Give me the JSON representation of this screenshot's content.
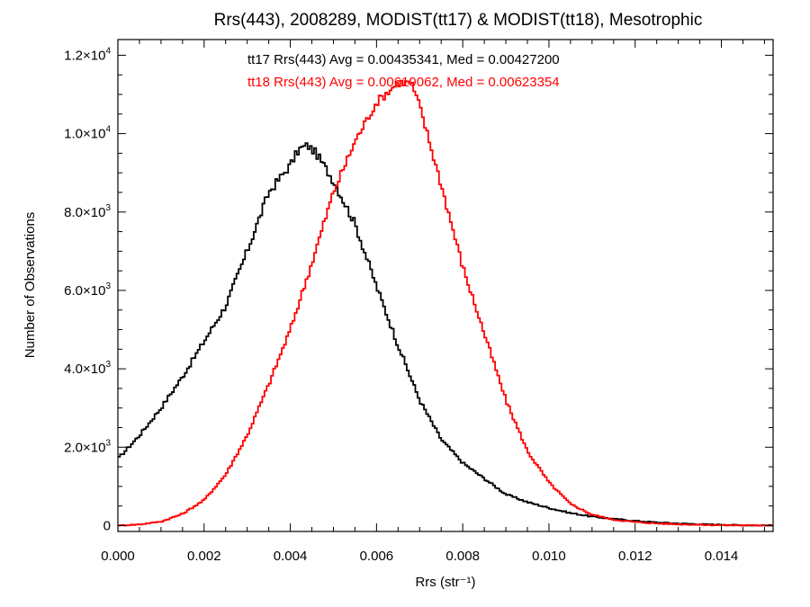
{
  "chart_data": {
    "type": "line",
    "style": "step",
    "title": "Rrs(443), 2008289, MODIST(tt17) & MODIST(tt18), Mesotrophic",
    "xlabel": "Rrs (str⁻¹)",
    "ylabel": "Number of Observations",
    "xlim": [
      0.0,
      0.0152
    ],
    "ylim": [
      -150,
      12400
    ],
    "grid": false,
    "x_ticks": [
      {
        "value": 0.0,
        "label": "0.000"
      },
      {
        "value": 0.002,
        "label": "0.002"
      },
      {
        "value": 0.004,
        "label": "0.004"
      },
      {
        "value": 0.006,
        "label": "0.006"
      },
      {
        "value": 0.008,
        "label": "0.008"
      },
      {
        "value": 0.01,
        "label": "0.010"
      },
      {
        "value": 0.012,
        "label": "0.012"
      },
      {
        "value": 0.014,
        "label": "0.014"
      }
    ],
    "y_ticks": [
      {
        "value": 0,
        "mantissa": "0",
        "exponent": ""
      },
      {
        "value": 2000,
        "mantissa": "2.0×10",
        "exponent": "3"
      },
      {
        "value": 4000,
        "mantissa": "4.0×10",
        "exponent": "3"
      },
      {
        "value": 6000,
        "mantissa": "6.0×10",
        "exponent": "3"
      },
      {
        "value": 8000,
        "mantissa": "8.0×10",
        "exponent": "3"
      },
      {
        "value": 10000,
        "mantissa": "1.0×10",
        "exponent": "4"
      },
      {
        "value": 12000,
        "mantissa": "1.2×10",
        "exponent": "4"
      }
    ],
    "series": [
      {
        "name": "tt17",
        "color": "#000000",
        "annotation": "tt17 Rrs(443) Avg = 0.00435341, Med = 0.00427200",
        "x": [
          0.0,
          0.0005,
          0.001,
          0.0015,
          0.002,
          0.0025,
          0.003,
          0.0035,
          0.004,
          0.0042,
          0.0044,
          0.0046,
          0.005,
          0.0055,
          0.006,
          0.0065,
          0.007,
          0.0075,
          0.008,
          0.0085,
          0.009,
          0.0095,
          0.01,
          0.0105,
          0.011,
          0.0115,
          0.012,
          0.0125,
          0.013,
          0.0135,
          0.014,
          0.0145,
          0.0152
        ],
        "y": [
          1700,
          2300,
          3000,
          3800,
          4700,
          5600,
          7000,
          8500,
          9200,
          9600,
          9700,
          9500,
          8800,
          7700,
          6100,
          4600,
          3200,
          2200,
          1600,
          1200,
          800,
          600,
          450,
          320,
          230,
          170,
          120,
          80,
          55,
          35,
          20,
          10,
          5
        ]
      },
      {
        "name": "tt18",
        "color": "#ff0000",
        "annotation": "tt18 Rrs(443) Avg = 0.00619062, Med = 0.00623354",
        "x": [
          0.0,
          0.0005,
          0.001,
          0.0015,
          0.002,
          0.0025,
          0.003,
          0.0035,
          0.004,
          0.0045,
          0.005,
          0.0055,
          0.006,
          0.0065,
          0.0068,
          0.007,
          0.0075,
          0.008,
          0.0085,
          0.009,
          0.0095,
          0.01,
          0.0105,
          0.011,
          0.0115,
          0.012,
          0.0125,
          0.013,
          0.0135,
          0.014,
          0.0145,
          0.0152
        ],
        "y": [
          0,
          30,
          100,
          300,
          650,
          1300,
          2300,
          3600,
          5000,
          6700,
          8500,
          9800,
          10800,
          11300,
          11300,
          10700,
          8700,
          6600,
          4900,
          3200,
          1900,
          1100,
          550,
          280,
          150,
          90,
          55,
          35,
          20,
          12,
          6,
          3
        ]
      }
    ]
  }
}
